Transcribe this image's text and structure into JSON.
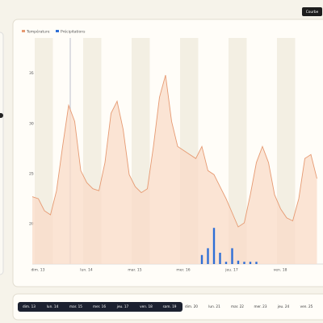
{
  "button": "Courbe",
  "chart_data": {
    "type": "line",
    "categories": [
      "dim. 13",
      null,
      null,
      null,
      null,
      null,
      null,
      null,
      "lun. 14",
      null,
      null,
      null,
      null,
      null,
      null,
      null,
      "mar. 15",
      null,
      null,
      null,
      null,
      null,
      null,
      null,
      "mer. 16",
      null,
      null,
      null,
      null,
      null,
      null,
      null,
      "jeu. 17",
      null,
      null,
      null,
      null,
      null,
      null,
      null,
      "ven. 18",
      null,
      null,
      null,
      null,
      null,
      null,
      null
    ],
    "series": [
      {
        "name": "Température",
        "color": "#e69a72",
        "values": [
          22.7,
          22.5,
          21.3,
          20.9,
          23.3,
          27.7,
          31.8,
          30.2,
          25.3,
          24.1,
          23.5,
          23.3,
          26.1,
          31,
          32.2,
          29.4,
          24.9,
          23.7,
          23.1,
          23.5,
          27.7,
          32.6,
          34.8,
          30.2,
          27.7,
          27.3,
          26.9,
          26.5,
          27.7,
          25.3,
          24.9,
          23.7,
          22.5,
          21.1,
          19.7,
          20.1,
          22.9,
          26.1,
          27.7,
          26.1,
          22.9,
          21.5,
          20.6,
          20.3,
          22.5,
          26.5,
          26.9,
          24.5
        ]
      },
      {
        "name": "Précipitations",
        "color": "#2f6fd6",
        "type": "bar",
        "axis": "y2",
        "values": [
          0,
          0,
          0,
          0,
          0,
          0,
          0,
          0,
          0,
          0,
          0,
          0,
          0,
          0,
          0,
          0,
          0,
          0,
          0,
          0,
          0,
          0,
          0,
          0,
          0,
          0,
          0,
          0,
          0.4,
          0.7,
          1.6,
          0.5,
          0.1,
          0.7,
          0.15,
          0.1,
          0.1,
          0.1,
          0,
          0,
          0,
          0,
          0,
          0,
          0,
          0,
          0,
          0
        ]
      }
    ],
    "ylim": [
      16,
      38.5
    ],
    "yticks": [
      20,
      25,
      30,
      35
    ],
    "y2lim": [
      0,
      10
    ]
  },
  "timeline": [
    "dim. 13",
    "lun. 14",
    "mar. 15",
    "mer. 16",
    "jeu. 17",
    "ven. 18",
    "sam. 19",
    "dim. 20",
    "lun. 21",
    "mar. 22",
    "mer. 23",
    "jeu. 24",
    "ven. 25"
  ]
}
